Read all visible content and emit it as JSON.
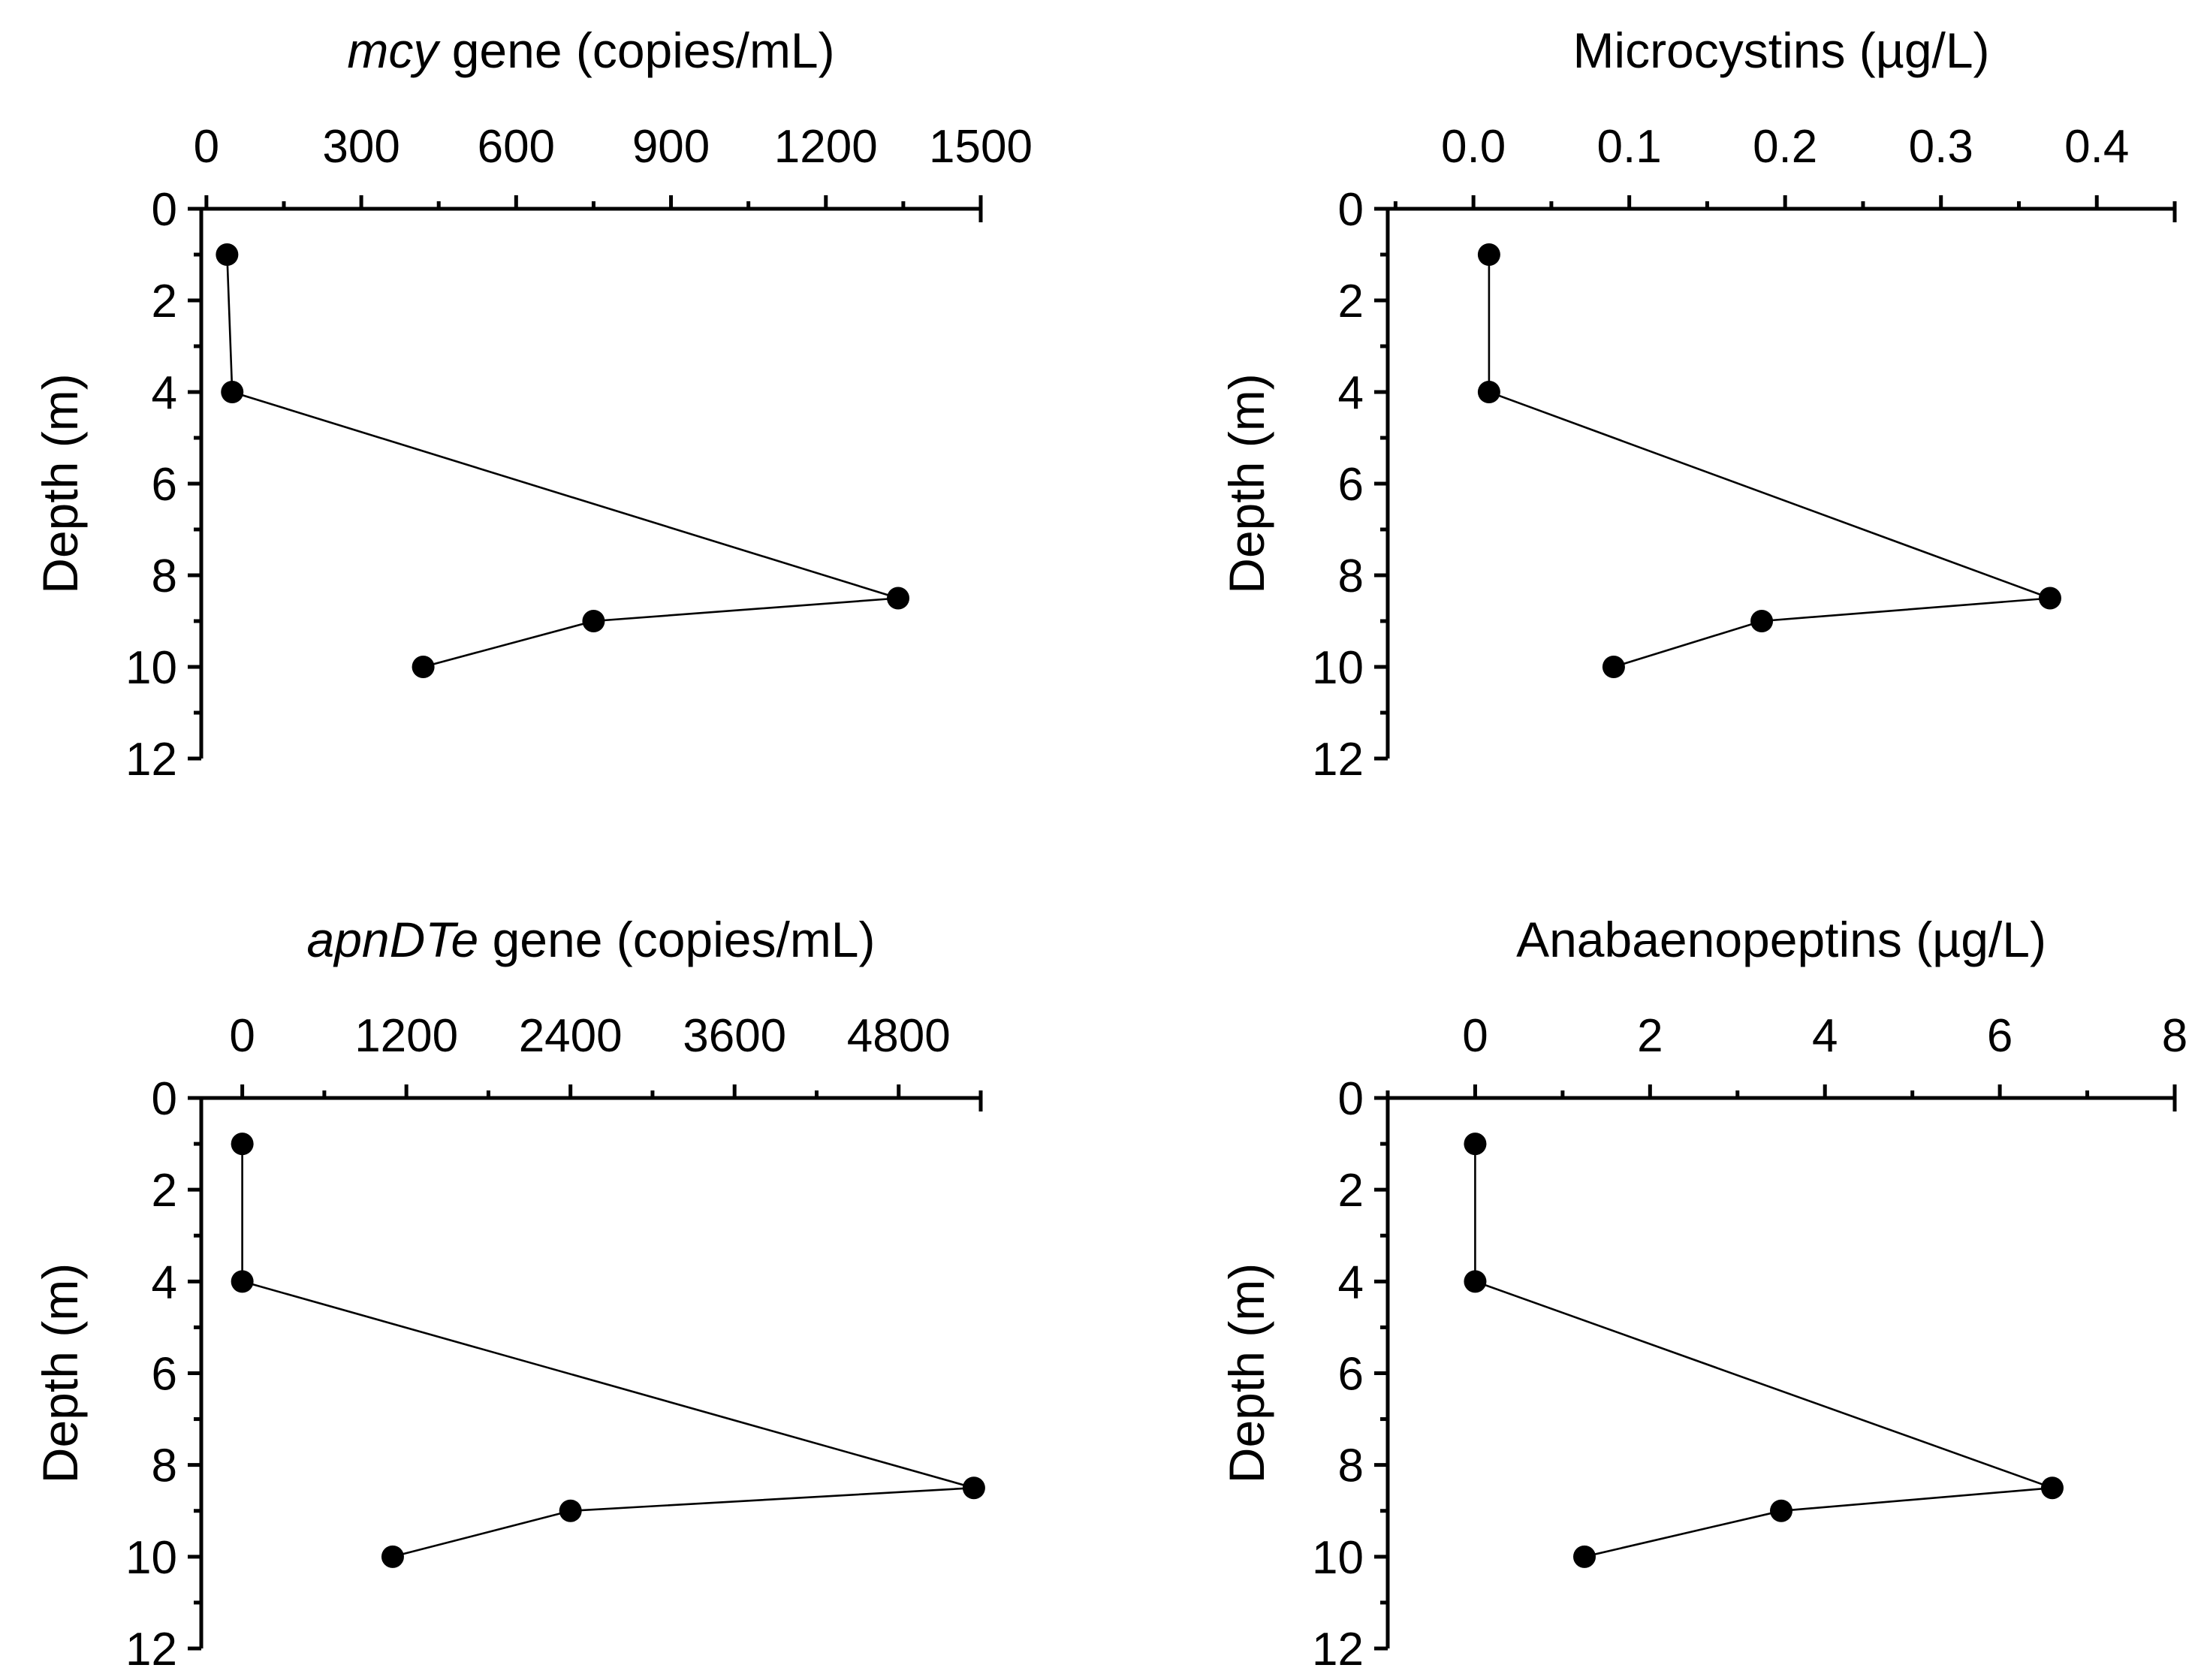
{
  "chart_data": [
    {
      "type": "line",
      "title_italic": "mcy",
      "title_rest": " gene (copies/mL)",
      "ylabel": "Depth (m)",
      "xlim": [
        -10,
        1500
      ],
      "xticks": [
        "0",
        "300",
        "600",
        "900",
        "1200",
        "1500"
      ],
      "xtick_values": [
        0,
        300,
        600,
        900,
        1200,
        1500
      ],
      "xminor_values": [
        150,
        450,
        750,
        1050,
        1350
      ],
      "ylim": [
        0,
        12
      ],
      "yticks": [
        "0",
        "2",
        "4",
        "6",
        "8",
        "10",
        "12"
      ],
      "ytick_values": [
        0,
        2,
        4,
        6,
        8,
        10,
        12
      ],
      "yminor_values": [
        1,
        3,
        5,
        7,
        9,
        11
      ],
      "series": [
        {
          "name": "mcy gene",
          "x": [
            40,
            50,
            1340,
            750,
            420
          ],
          "y": [
            1,
            4,
            8.5,
            9,
            10
          ]
        }
      ]
    },
    {
      "type": "line",
      "title_italic": "",
      "title_rest": "Microcystins (µg/L)",
      "ylabel": "Depth (m)",
      "xlim": [
        -0.055,
        0.45
      ],
      "xticks": [
        "0.0",
        "0.1",
        "0.2",
        "0.3",
        "0.4"
      ],
      "xtick_values": [
        0,
        0.1,
        0.2,
        0.3,
        0.4
      ],
      "xminor_values": [
        -0.05,
        0.05,
        0.15,
        0.25,
        0.35,
        0.45
      ],
      "ylim": [
        0,
        12
      ],
      "yticks": [
        "0",
        "2",
        "4",
        "6",
        "8",
        "10",
        "12"
      ],
      "ytick_values": [
        0,
        2,
        4,
        6,
        8,
        10,
        12
      ],
      "yminor_values": [
        1,
        3,
        5,
        7,
        9,
        11
      ],
      "series": [
        {
          "name": "Microcystins",
          "x": [
            0.01,
            0.01,
            0.37,
            0.185,
            0.09
          ],
          "y": [
            1,
            4,
            8.5,
            9,
            10
          ]
        }
      ]
    },
    {
      "type": "line",
      "title_italic": "apnDTe",
      "title_rest": " gene (copies/mL)",
      "ylabel": "Depth (m)",
      "xlim": [
        -300,
        5400
      ],
      "xticks": [
        "0",
        "1200",
        "2400",
        "3600",
        "4800"
      ],
      "xtick_values": [
        0,
        1200,
        2400,
        3600,
        4800
      ],
      "xminor_values": [
        600,
        1800,
        3000,
        4200,
        5400
      ],
      "ylim": [
        0,
        12
      ],
      "yticks": [
        "0",
        "2",
        "4",
        "6",
        "8",
        "10",
        "12"
      ],
      "ytick_values": [
        0,
        2,
        4,
        6,
        8,
        10,
        12
      ],
      "yminor_values": [
        1,
        3,
        5,
        7,
        9,
        11
      ],
      "series": [
        {
          "name": "apnDTe gene",
          "x": [
            0,
            0,
            5350,
            2400,
            1100
          ],
          "y": [
            1,
            4,
            8.5,
            9,
            10
          ]
        }
      ]
    },
    {
      "type": "line",
      "title_italic": "",
      "title_rest": "Anabaenopeptins (µg/L)",
      "ylabel": "Depth (m)",
      "xlim": [
        -1,
        8
      ],
      "xticks": [
        "0",
        "2",
        "4",
        "6",
        "8"
      ],
      "xtick_values": [
        0,
        2,
        4,
        6,
        8
      ],
      "xminor_values": [
        -1,
        1,
        3,
        5,
        7
      ],
      "ylim": [
        0,
        12
      ],
      "yticks": [
        "0",
        "2",
        "4",
        "6",
        "8",
        "10",
        "12"
      ],
      "ytick_values": [
        0,
        2,
        4,
        6,
        8,
        10,
        12
      ],
      "yminor_values": [
        1,
        3,
        5,
        7,
        9,
        11
      ],
      "series": [
        {
          "name": "Anabaenopeptins",
          "x": [
            0,
            0,
            6.6,
            3.5,
            1.25
          ],
          "y": [
            1,
            4,
            8.5,
            9,
            10
          ]
        }
      ]
    }
  ]
}
